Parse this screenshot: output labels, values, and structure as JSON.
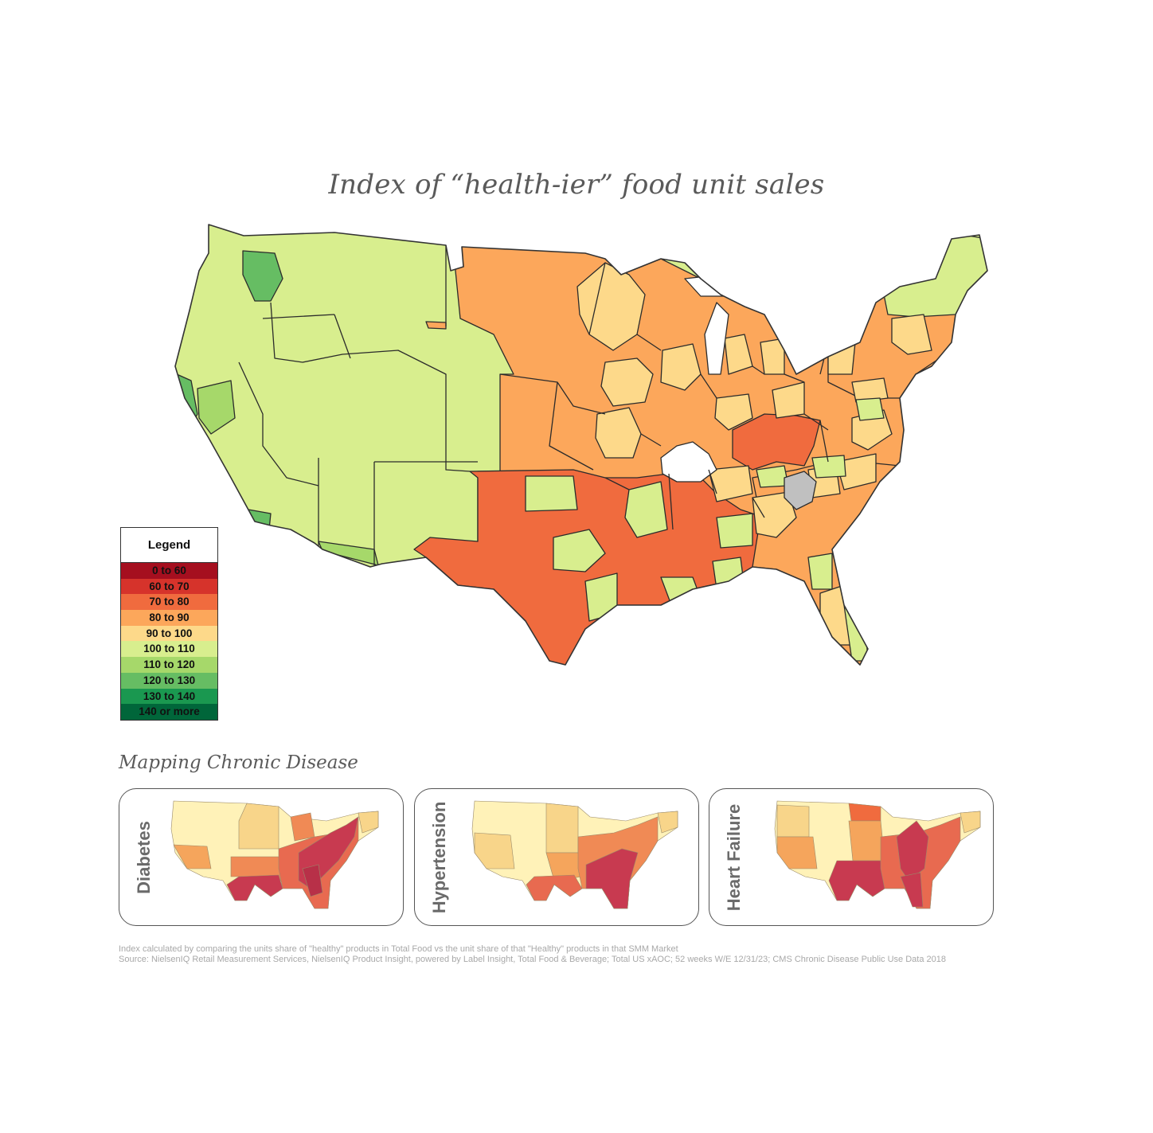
{
  "title": "Index of “health-ier” food unit sales",
  "legend": {
    "title": "Legend",
    "items": [
      {
        "label": "0  to 60",
        "color": "#a50f1f"
      },
      {
        "label": "60 to 70",
        "color": "#d6332b"
      },
      {
        "label": "70 to 80",
        "color": "#f06b3e"
      },
      {
        "label": "80 to 90",
        "color": "#fca75b"
      },
      {
        "label": "90 to 100",
        "color": "#fdd98a"
      },
      {
        "label": "100 to 110",
        "color": "#d8ee8e"
      },
      {
        "label": "110 to 120",
        "color": "#a6d86a"
      },
      {
        "label": "120 to 130",
        "color": "#66bd63"
      },
      {
        "label": "130 to 140",
        "color": "#1a9850"
      },
      {
        "label": "140 or more",
        "color": "#00663a"
      }
    ],
    "no_data_color": "#ffffff",
    "excluded_color": "#c0c0c0"
  },
  "subtitle": "Mapping Chronic Disease",
  "panels": [
    {
      "label": "Diabetes"
    },
    {
      "label": "Hypertension"
    },
    {
      "label": "Heart Failure"
    }
  ],
  "footnote": {
    "line1": "Index calculated by comparing the units share of \"healthy\" products in Total Food vs the unit share of that \"Healthy\" products in that SMM Market",
    "line2": "Source: NielsenIQ Retail Measurement Services, NielsenIQ Product Insight, powered by Label Insight, Total Food & Beverage; Total US xAOC; 52 weeks W/E 12/31/23; CMS Chronic Disease Public Use Data 2018"
  }
}
